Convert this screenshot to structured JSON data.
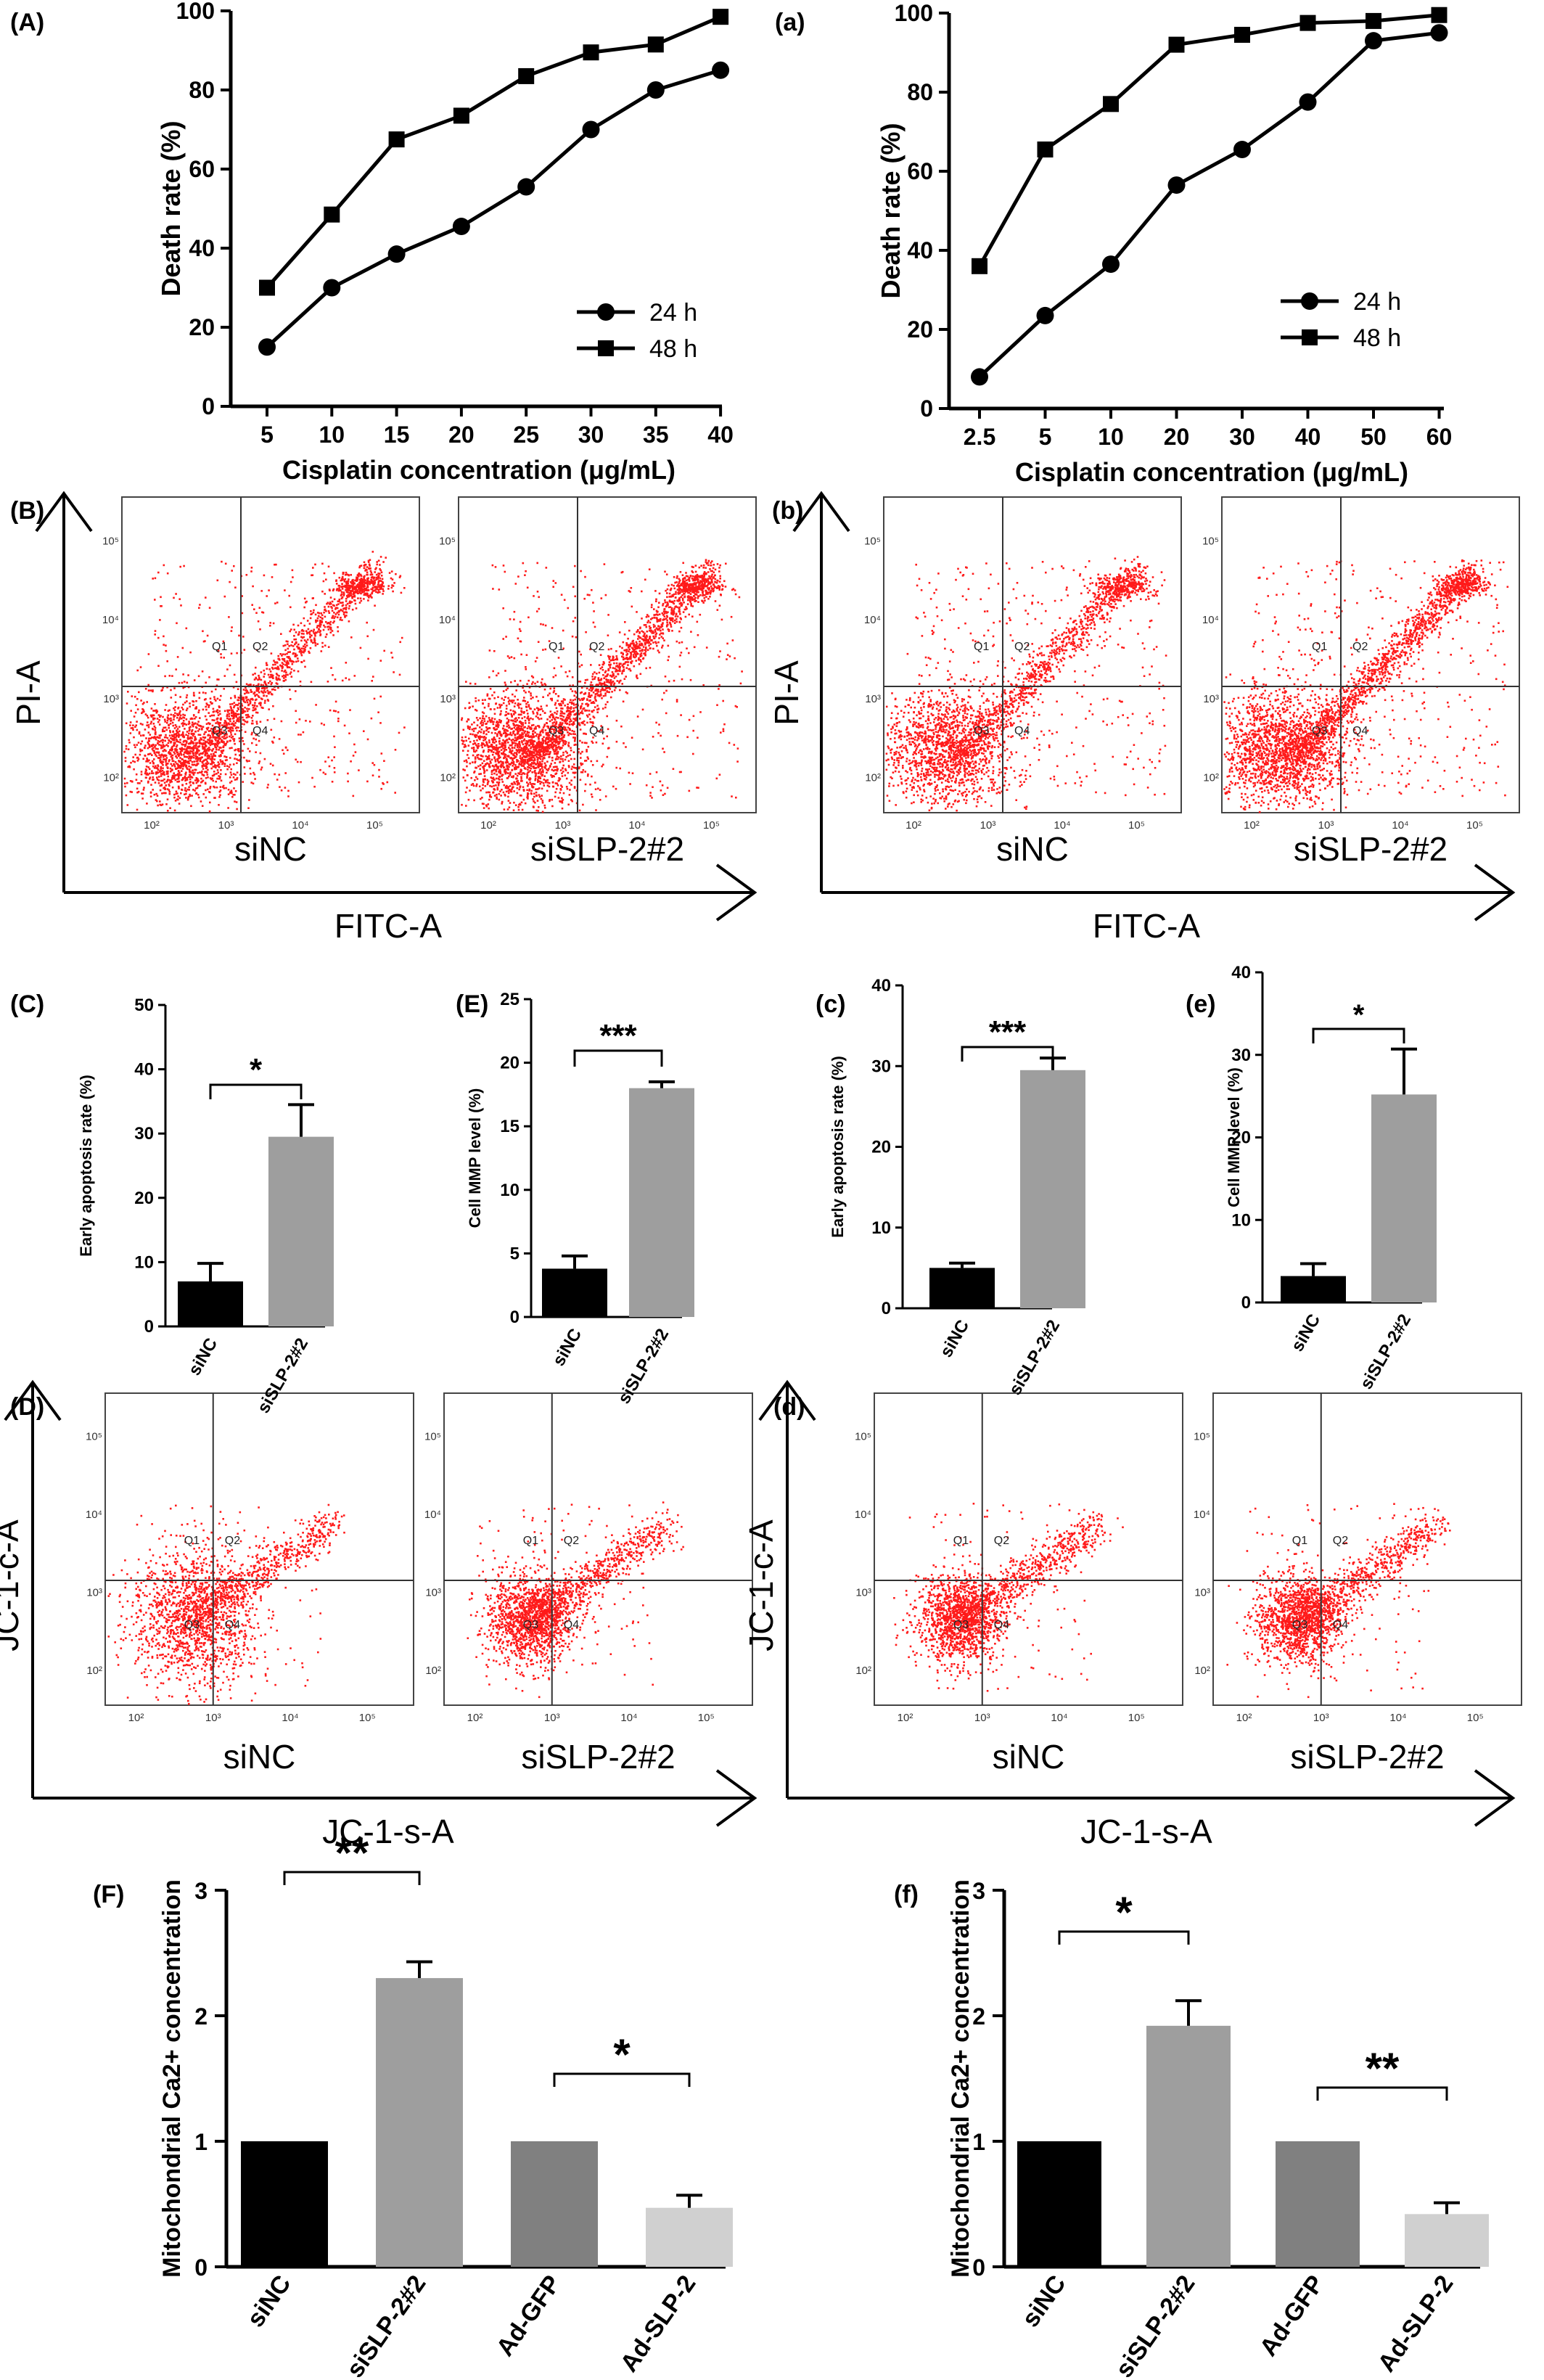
{
  "colors": {
    "black": "#000000",
    "gray": "#9e9e9e",
    "darkgray": "#808080",
    "lightgray": "#d0d0d0",
    "flow_dots": "#ff1a1a"
  },
  "chart_data": [
    {
      "panel": "(A)",
      "type": "line",
      "xlabel": "Cisplatin concentration (μg/mL)",
      "ylabel": "Death rate (%)",
      "categories": [
        "5",
        "10",
        "15",
        "20",
        "25",
        "30",
        "35",
        "40"
      ],
      "ylim": [
        0,
        100
      ],
      "yticks": [
        "0",
        "20",
        "40",
        "60",
        "80",
        "100"
      ],
      "legend_position": "bottom-right",
      "series": [
        {
          "name": "24 h",
          "marker": "circle",
          "values": [
            15,
            30,
            38.5,
            45.5,
            55.5,
            70,
            80,
            85
          ]
        },
        {
          "name": "48 h",
          "marker": "square",
          "values": [
            30,
            48.5,
            67.5,
            73.5,
            83.5,
            89.5,
            91.5,
            98.5
          ]
        }
      ]
    },
    {
      "panel": "(a)",
      "type": "line",
      "xlabel": "Cisplatin concentration (μg/mL)",
      "ylabel": "Death rate (%)",
      "categories": [
        "2.5",
        "5",
        "10",
        "20",
        "30",
        "40",
        "50",
        "60"
      ],
      "ylim": [
        0,
        100
      ],
      "yticks": [
        "0",
        "20",
        "40",
        "60",
        "80",
        "100"
      ],
      "legend_position": "bottom-right",
      "series": [
        {
          "name": "24 h",
          "marker": "circle",
          "values": [
            8,
            23.5,
            36.5,
            56.5,
            65.5,
            77.5,
            93,
            95
          ]
        },
        {
          "name": "48 h",
          "marker": "square",
          "values": [
            36,
            65.5,
            77,
            92,
            94.5,
            97.5,
            98,
            99.5
          ]
        }
      ]
    },
    {
      "panel": "(C)",
      "type": "bar",
      "ylabel": "Early apoptosis rate (%)",
      "categories": [
        "siNC",
        "siSLP-2#2"
      ],
      "values": [
        7,
        29.5
      ],
      "errors": [
        2.8,
        5
      ],
      "ylim": [
        0,
        50
      ],
      "yticks": [
        "0",
        "10",
        "20",
        "30",
        "40",
        "50"
      ],
      "significance": "*"
    },
    {
      "panel": "(E)",
      "type": "bar",
      "ylabel": "Cell MMP level (%)",
      "categories": [
        "siNC",
        "siSLP-2#2"
      ],
      "values": [
        3.8,
        18
      ],
      "errors": [
        1,
        0.5
      ],
      "ylim": [
        0,
        25
      ],
      "yticks": [
        "0",
        "5",
        "10",
        "15",
        "20",
        "25"
      ],
      "significance": "***"
    },
    {
      "panel": "(c)",
      "type": "bar",
      "ylabel": "Early apoptosis rate (%)",
      "categories": [
        "siNC",
        "siSLP-2#2"
      ],
      "values": [
        5,
        29.5
      ],
      "errors": [
        0.6,
        1.5
      ],
      "ylim": [
        0,
        40
      ],
      "yticks": [
        "0",
        "10",
        "20",
        "30",
        "40"
      ],
      "significance": "***"
    },
    {
      "panel": "(e)",
      "type": "bar",
      "ylabel": "Cell MMP level (%)",
      "categories": [
        "siNC",
        "siSLP-2#2"
      ],
      "values": [
        3.2,
        25.2
      ],
      "errors": [
        1.5,
        5.5
      ],
      "ylim": [
        0,
        40
      ],
      "yticks": [
        "0",
        "10",
        "20",
        "30",
        "40"
      ],
      "significance": "*"
    },
    {
      "panel": "(F)",
      "type": "bar",
      "ylabel": "Mitochondrial Ca2+ concentration",
      "categories": [
        "siNC",
        "siSLP-2#2",
        "Ad-GFP",
        "Ad-SLP-2"
      ],
      "values": [
        1,
        2.3,
        1,
        0.47
      ],
      "errors": [
        0,
        0.13,
        0,
        0.1
      ],
      "ylim": [
        0,
        3
      ],
      "yticks": [
        "0",
        "1",
        "2",
        "3"
      ],
      "significance": [
        "**",
        "*"
      ]
    },
    {
      "panel": "(f)",
      "type": "bar",
      "ylabel": "Mitochondrial Ca2+ concentration",
      "categories": [
        "siNC",
        "siSLP-2#2",
        "Ad-GFP",
        "Ad-SLP-2"
      ],
      "values": [
        1,
        1.92,
        1,
        0.42
      ],
      "errors": [
        0,
        0.2,
        0,
        0.09
      ],
      "ylim": [
        0,
        3
      ],
      "yticks": [
        "0",
        "1",
        "2",
        "3"
      ],
      "significance": [
        "*",
        "**"
      ]
    }
  ],
  "flow_panels": [
    {
      "panel": "(B)",
      "ylabel": "PI-A",
      "xlabel": "FITC-A",
      "plots": [
        "siNC",
        "siSLP-2#2"
      ]
    },
    {
      "panel": "(b)",
      "ylabel": "PI-A",
      "xlabel": "FITC-A",
      "plots": [
        "siNC",
        "siSLP-2#2"
      ]
    },
    {
      "panel": "(D)",
      "ylabel": "JC-1-c-A",
      "xlabel": "JC-1-s-A",
      "plots": [
        "siNC",
        "siSLP-2#2"
      ]
    },
    {
      "panel": "(d)",
      "ylabel": "JC-1-c-A",
      "xlabel": "JC-1-s-A",
      "plots": [
        "siNC",
        "siSLP-2#2"
      ]
    }
  ],
  "quadrants": [
    "Q1",
    "Q2",
    "Q3",
    "Q4"
  ],
  "flow_ticks": [
    "10²",
    "10³",
    "10⁴",
    "10⁵"
  ]
}
